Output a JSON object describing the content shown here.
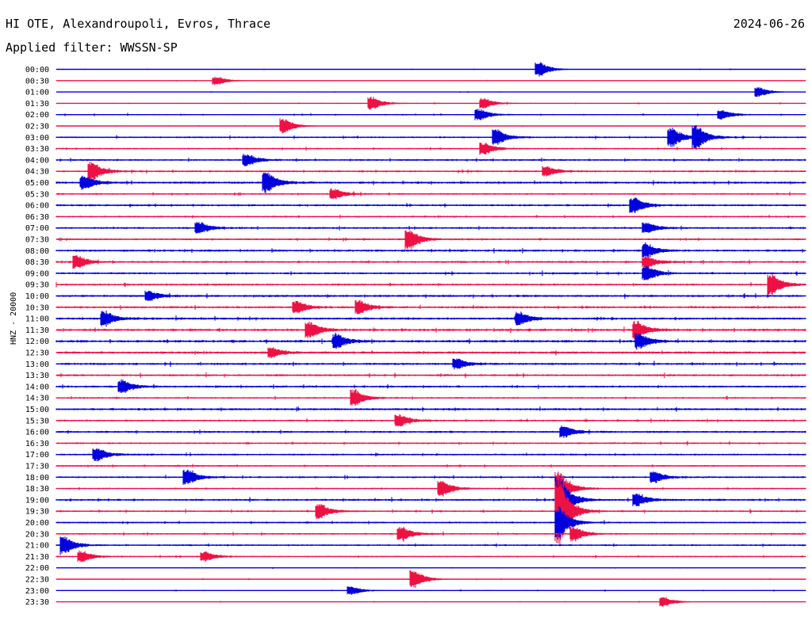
{
  "header": {
    "station": "HI OTE, Alexandroupoli, Evros, Thrace",
    "date": "2024-06-26",
    "filter": "Applied filter: WWSSN-SP"
  },
  "colors": {
    "trace_a": "#0000dd",
    "trace_b": "#ee1144"
  },
  "chart_data": {
    "type": "line",
    "ylabel": "HNZ - 20000",
    "categories": [
      "00:00",
      "00:30",
      "01:00",
      "01:30",
      "02:00",
      "02:30",
      "03:00",
      "03:30",
      "04:00",
      "04:30",
      "05:00",
      "05:30",
      "06:00",
      "06:30",
      "07:00",
      "07:30",
      "08:00",
      "08:30",
      "09:00",
      "09:30",
      "10:00",
      "10:30",
      "11:00",
      "11:30",
      "12:00",
      "12:30",
      "13:00",
      "13:30",
      "14:00",
      "14:30",
      "15:00",
      "15:30",
      "16:00",
      "16:30",
      "17:00",
      "17:30",
      "18:00",
      "18:30",
      "19:00",
      "19:30",
      "20:00",
      "20:30",
      "21:00",
      "21:30",
      "22:00",
      "22:30",
      "23:00",
      "23:30"
    ],
    "trace_colors": [
      "blue",
      "red"
    ],
    "window_minutes": 30,
    "noise_level": [
      0.4,
      0.4,
      0.4,
      0.5,
      0.7,
      0.4,
      1.0,
      0.9,
      1.1,
      1.1,
      1.3,
      1.0,
      1.2,
      1.0,
      1.2,
      1.0,
      1.3,
      1.2,
      1.2,
      1.2,
      1.3,
      1.3,
      1.4,
      1.4,
      1.5,
      1.4,
      1.3,
      1.2,
      1.2,
      1.0,
      1.3,
      1.1,
      1.2,
      1.0,
      1.1,
      0.9,
      1.1,
      0.9,
      1.2,
      1.0,
      1.0,
      1.0,
      1.0,
      0.8,
      0.4,
      0.5,
      0.5,
      0.4
    ],
    "events": [
      {
        "row": 0,
        "minute": 19.2,
        "amp": 9
      },
      {
        "row": 1,
        "minute": 6.3,
        "amp": 5
      },
      {
        "row": 2,
        "minute": 28.0,
        "amp": 6
      },
      {
        "row": 3,
        "minute": 12.5,
        "amp": 8
      },
      {
        "row": 3,
        "minute": 17.0,
        "amp": 6
      },
      {
        "row": 4,
        "minute": 16.8,
        "amp": 7
      },
      {
        "row": 4,
        "minute": 26.5,
        "amp": 6
      },
      {
        "row": 5,
        "minute": 9.0,
        "amp": 9
      },
      {
        "row": 6,
        "minute": 17.5,
        "amp": 9
      },
      {
        "row": 6,
        "minute": 24.5,
        "amp": 12
      },
      {
        "row": 6,
        "minute": 25.5,
        "amp": 14
      },
      {
        "row": 7,
        "minute": 17.0,
        "amp": 7
      },
      {
        "row": 8,
        "minute": 7.5,
        "amp": 7
      },
      {
        "row": 9,
        "minute": 1.3,
        "amp": 11
      },
      {
        "row": 9,
        "minute": 19.5,
        "amp": 6
      },
      {
        "row": 10,
        "minute": 1.0,
        "amp": 8
      },
      {
        "row": 10,
        "minute": 8.3,
        "amp": 12
      },
      {
        "row": 11,
        "minute": 11.0,
        "amp": 6
      },
      {
        "row": 12,
        "minute": 23.0,
        "amp": 9
      },
      {
        "row": 14,
        "minute": 5.6,
        "amp": 7
      },
      {
        "row": 14,
        "minute": 23.5,
        "amp": 6
      },
      {
        "row": 15,
        "minute": 14.0,
        "amp": 12
      },
      {
        "row": 16,
        "minute": 23.5,
        "amp": 8
      },
      {
        "row": 17,
        "minute": 0.7,
        "amp": 8
      },
      {
        "row": 17,
        "minute": 23.5,
        "amp": 7
      },
      {
        "row": 18,
        "minute": 23.5,
        "amp": 9
      },
      {
        "row": 19,
        "minute": 28.5,
        "amp": 13
      },
      {
        "row": 20,
        "minute": 3.6,
        "amp": 6
      },
      {
        "row": 21,
        "minute": 9.5,
        "amp": 7
      },
      {
        "row": 21,
        "minute": 12.0,
        "amp": 8
      },
      {
        "row": 22,
        "minute": 1.8,
        "amp": 9
      },
      {
        "row": 22,
        "minute": 18.4,
        "amp": 8
      },
      {
        "row": 23,
        "minute": 10.0,
        "amp": 10
      },
      {
        "row": 23,
        "minute": 23.1,
        "amp": 10
      },
      {
        "row": 24,
        "minute": 11.1,
        "amp": 8
      },
      {
        "row": 24,
        "minute": 23.2,
        "amp": 9
      },
      {
        "row": 25,
        "minute": 8.5,
        "amp": 6
      },
      {
        "row": 26,
        "minute": 15.9,
        "amp": 6
      },
      {
        "row": 28,
        "minute": 2.5,
        "amp": 8
      },
      {
        "row": 29,
        "minute": 11.8,
        "amp": 10
      },
      {
        "row": 31,
        "minute": 13.6,
        "amp": 7
      },
      {
        "row": 32,
        "minute": 20.2,
        "amp": 7
      },
      {
        "row": 34,
        "minute": 1.5,
        "amp": 8
      },
      {
        "row": 36,
        "minute": 5.1,
        "amp": 9
      },
      {
        "row": 36,
        "minute": 23.8,
        "amp": 7
      },
      {
        "row": 37,
        "minute": 15.3,
        "amp": 10
      },
      {
        "row": 37,
        "minute": 20.0,
        "amp": 22
      },
      {
        "row": 38,
        "minute": 20.0,
        "amp": 30
      },
      {
        "row": 38,
        "minute": 23.1,
        "amp": 8
      },
      {
        "row": 39,
        "minute": 10.4,
        "amp": 9
      },
      {
        "row": 39,
        "minute": 20.0,
        "amp": 45
      },
      {
        "row": 40,
        "minute": 20.0,
        "amp": 20
      },
      {
        "row": 41,
        "minute": 13.7,
        "amp": 8
      },
      {
        "row": 41,
        "minute": 20.6,
        "amp": 9
      },
      {
        "row": 42,
        "minute": 0.2,
        "amp": 10
      },
      {
        "row": 43,
        "minute": 0.9,
        "amp": 7
      },
      {
        "row": 43,
        "minute": 5.8,
        "amp": 6
      },
      {
        "row": 45,
        "minute": 14.2,
        "amp": 11
      },
      {
        "row": 46,
        "minute": 11.7,
        "amp": 5
      },
      {
        "row": 47,
        "minute": 24.2,
        "amp": 6
      }
    ]
  }
}
